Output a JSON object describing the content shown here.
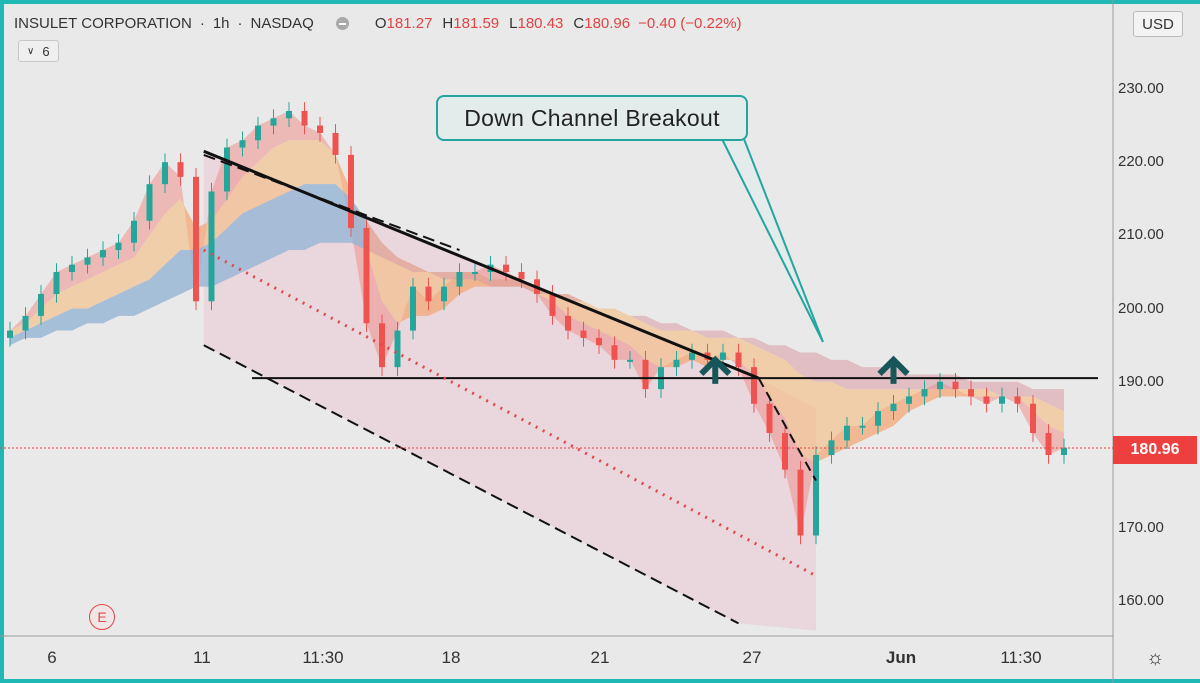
{
  "header": {
    "symbol": "INSULET CORPORATION",
    "interval": "1h",
    "exchange": "NASDAQ",
    "open_label": "O",
    "open": "181.27",
    "high_label": "H",
    "high": "181.59",
    "low_label": "L",
    "low": "180.43",
    "close_label": "C",
    "close": "180.96",
    "change": "−0.40 (−0.22%)",
    "indicator_count": "6",
    "currency": "USD"
  },
  "annotation": {
    "callout_text": "Down Channel Breakout",
    "earnings_marker": "E"
  },
  "colors": {
    "up": "#26a69a",
    "down": "#ef5350",
    "price_tag": "#ee3f3f",
    "channel_fill": "#e9c9d3",
    "arrow": "#17575a",
    "frame": "#1fb8b5"
  },
  "chart_data": {
    "type": "line",
    "title": "INSULET CORPORATION, 1h, NASDAQ",
    "xlabel": "",
    "ylabel": "",
    "ylim": [
      155,
      243
    ],
    "y_ticks": [
      "230.00",
      "220.00",
      "210.00",
      "200.00",
      "190.00",
      "180.00",
      "170.00",
      "160.00"
    ],
    "x_ticks": [
      "6",
      "11",
      "11:30",
      "18",
      "21",
      "27",
      "Jun",
      "11:30"
    ],
    "last_price": "180.96",
    "grid": false,
    "series": [
      {
        "values": [
          197,
          199,
          202,
          205,
          206,
          207,
          208,
          209,
          212,
          217,
          220,
          218,
          201,
          216,
          222,
          223,
          225,
          226,
          227,
          225,
          224,
          221,
          211,
          198,
          192,
          197,
          203,
          201,
          203,
          205,
          205,
          206,
          205,
          204,
          202,
          199,
          197,
          196,
          195,
          193,
          193,
          189,
          192,
          193,
          194,
          193,
          194,
          192,
          187,
          183,
          178,
          169,
          180,
          182,
          184,
          184,
          186,
          187,
          188,
          189,
          190,
          189,
          188,
          187,
          188,
          187,
          183,
          180,
          181
        ]
      },
      {
        "values": [
          197,
          198,
          200,
          202,
          203,
          204,
          205,
          206,
          207,
          210,
          213,
          215,
          211,
          212,
          215,
          218,
          220,
          222,
          223,
          223,
          223,
          221,
          216,
          208,
          201,
          198,
          199,
          199,
          200,
          202,
          203,
          203,
          203,
          203,
          202,
          201,
          199,
          198,
          197,
          196,
          195,
          193,
          192,
          192,
          193,
          192,
          193,
          193,
          191,
          188,
          185,
          180,
          179,
          180,
          181,
          182,
          183,
          184,
          186,
          187,
          188,
          188,
          188,
          188,
          188,
          188,
          186,
          184,
          183
        ]
      },
      {
        "values": [
          196,
          197,
          198,
          199,
          200,
          200,
          201,
          202,
          203,
          204,
          206,
          208,
          208,
          209,
          211,
          213,
          214,
          215,
          216,
          217,
          217,
          217,
          215,
          212,
          209,
          207,
          206,
          205,
          205,
          205,
          205,
          204,
          204,
          204,
          203,
          202,
          202,
          201,
          200,
          200,
          199,
          198,
          197,
          197,
          197,
          196,
          196,
          196,
          195,
          194,
          193,
          191,
          190,
          190,
          189,
          189,
          189,
          189,
          189,
          189,
          189,
          189,
          189,
          189,
          188,
          188,
          188,
          187,
          186
        ]
      },
      {
        "values": [
          195,
          196,
          196,
          197,
          197,
          198,
          198,
          199,
          199,
          200,
          201,
          202,
          203,
          203,
          204,
          205,
          206,
          207,
          208,
          208,
          209,
          209,
          209,
          208,
          207,
          206,
          205,
          205,
          204,
          204,
          204,
          203,
          203,
          203,
          202,
          202,
          201,
          201,
          200,
          200,
          199,
          199,
          198,
          198,
          197,
          197,
          197,
          196,
          196,
          195,
          195,
          194,
          194,
          193,
          193,
          192,
          192,
          192,
          191,
          191,
          191,
          191,
          190,
          190,
          190,
          190,
          189,
          189,
          189
        ]
      }
    ],
    "channel": {
      "upper_start": [
        12.5,
        221.5
      ],
      "upper_end": [
        48.3,
        190.5
      ],
      "median_start": [
        12.5,
        208.0
      ],
      "median_end": [
        52.0,
        163.5
      ],
      "lower_start": [
        12.5,
        195.0
      ],
      "lower_end": [
        52.0,
        176.5
      ],
      "upper_line_end": [
        58.5,
        185.0
      ],
      "lower_line_visible_end": [
        47.0,
        157.0
      ]
    },
    "horizontal_level": 190.5,
    "breakout_arrows": [
      {
        "x": 45.5,
        "y": 193
      },
      {
        "x": 57,
        "y": 193
      }
    ]
  }
}
